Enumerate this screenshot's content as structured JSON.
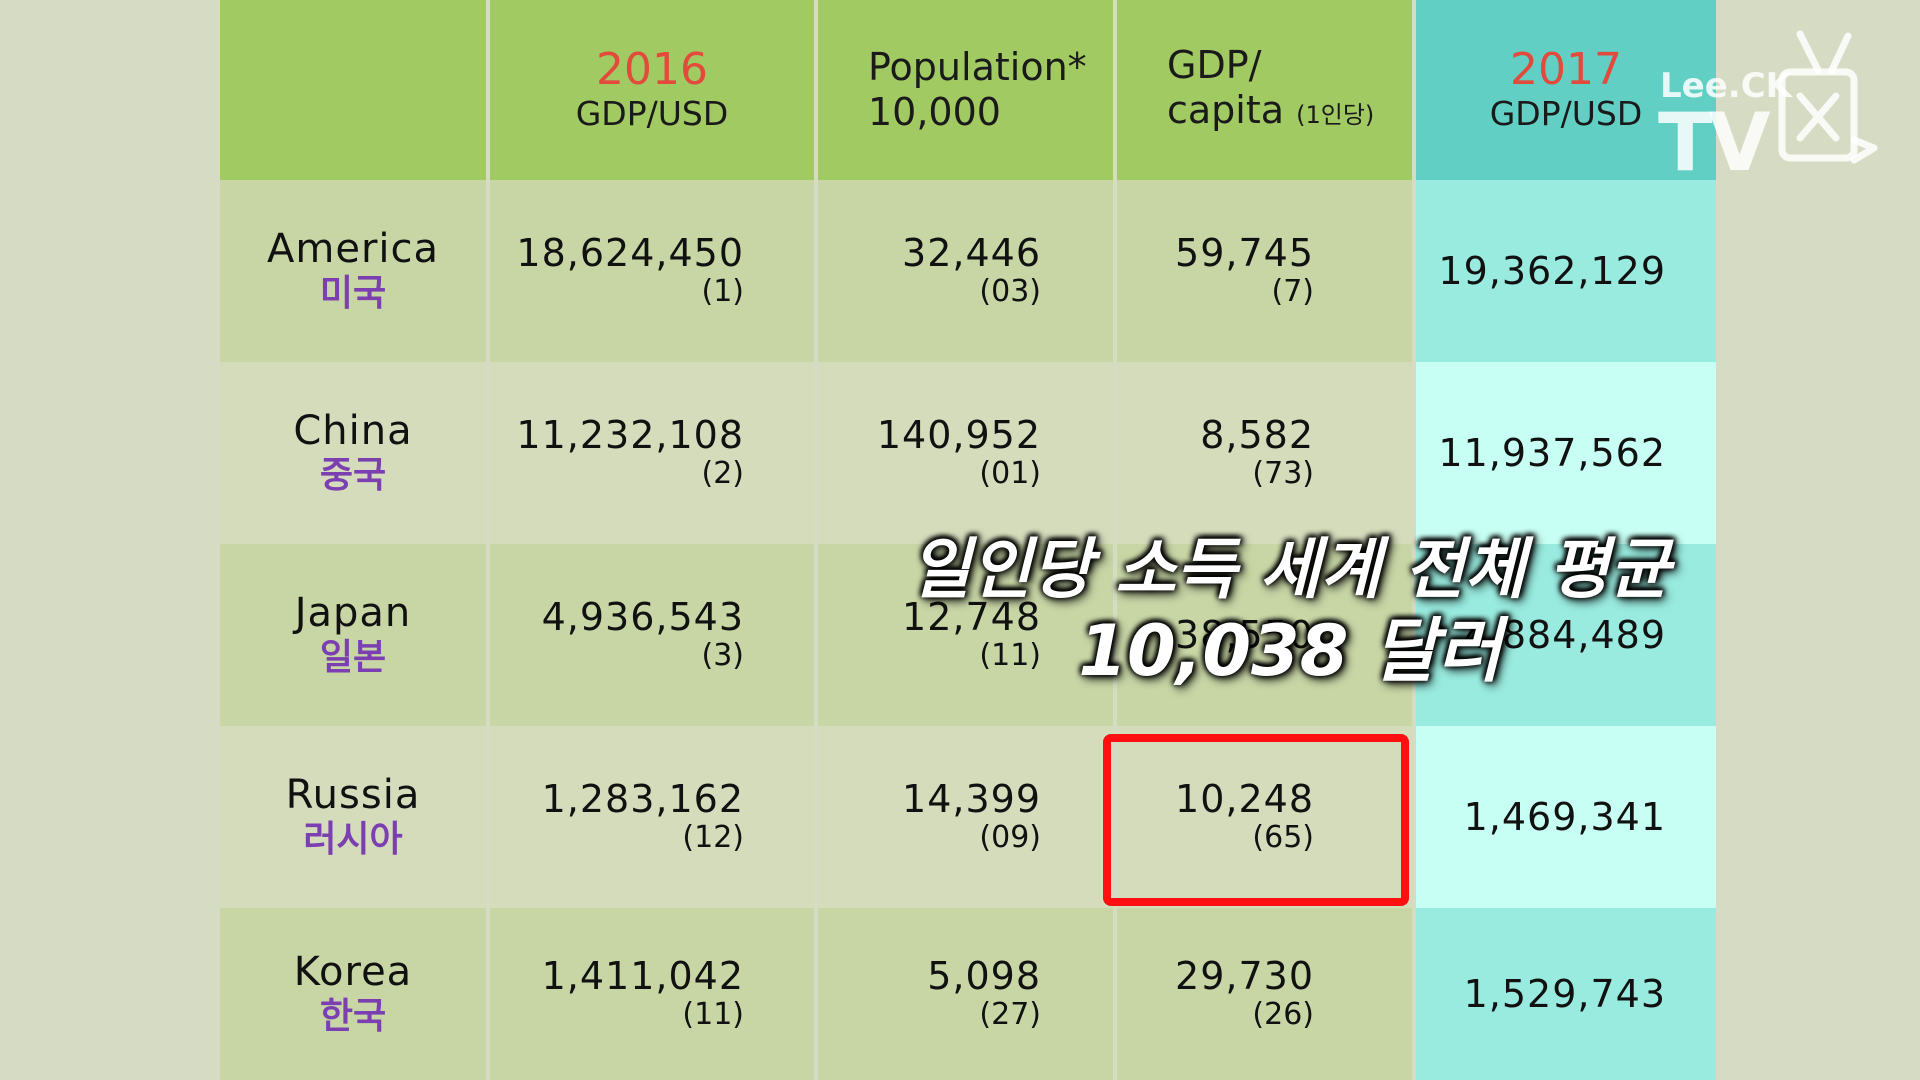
{
  "header": {
    "col1_year": "2016",
    "col1_sub": "GDP/USD",
    "col2_line1": "Population*",
    "col2_line2": "10,000",
    "col3_line1": "GDP/",
    "col3_line2": "capita",
    "col3_note": "(1인당)",
    "col4_year": "2017",
    "col4_sub": "GDP/USD"
  },
  "rows": [
    {
      "en": "America",
      "ko": "미국",
      "gdp2016": "18,624,450",
      "gdp2016_rank": "(1)",
      "pop": "32,446",
      "pop_rank": "(03)",
      "capita": "59,745",
      "capita_rank": "(7)",
      "gdp2017": "19,362,129"
    },
    {
      "en": "China",
      "ko": "중국",
      "gdp2016": "11,232,108",
      "gdp2016_rank": "(2)",
      "pop": "140,952",
      "pop_rank": "(01)",
      "capita": "8,582",
      "capita_rank": "(73)",
      "gdp2017": "11,937,562"
    },
    {
      "en": "Japan",
      "ko": "일본",
      "gdp2016": "4,936,543",
      "gdp2016_rank": "(3)",
      "pop": "12,748",
      "pop_rank": "(11)",
      "capita": "38,550",
      "capita_rank": "",
      "gdp2017": "4,884,489"
    },
    {
      "en": "Russia",
      "ko": "러시아",
      "gdp2016": "1,283,162",
      "gdp2016_rank": "(12)",
      "pop": "14,399",
      "pop_rank": "(09)",
      "capita": "10,248",
      "capita_rank": "(65)",
      "gdp2017": "1,469,341"
    },
    {
      "en": "Korea",
      "ko": "한국",
      "gdp2016": "1,411,042",
      "gdp2016_rank": "(11)",
      "pop": "5,098",
      "pop_rank": "(27)",
      "capita": "29,730",
      "capita_rank": "(26)",
      "gdp2017": "1,529,743"
    }
  ],
  "caption": {
    "line1": "일인당 소득 세계 전체 평균",
    "line2": "10,038 달러"
  },
  "logo": {
    "brand": "Lee.CK",
    "tv": "TV",
    "icon": "tv-logo-icon"
  },
  "colors": {
    "header": "#a2ca63",
    "header_2017": "#62cfc4",
    "year": "#e24a3c",
    "korean_name": "#7b3fb2",
    "highlight": "#ff0f0f"
  }
}
